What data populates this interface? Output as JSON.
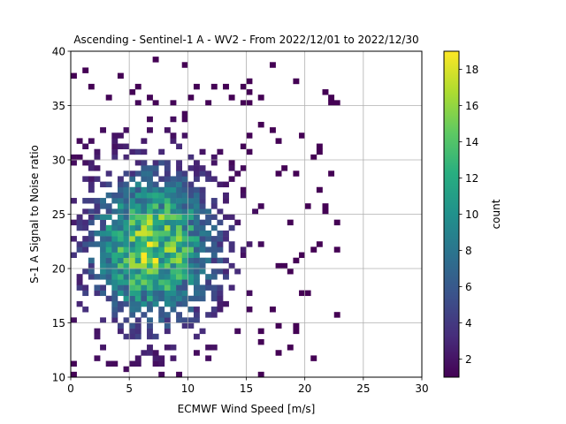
{
  "chart_data": {
    "type": "heatmap",
    "title": "Ascending - Sentinel-1 A - WV2 - From 2022/12/01 to 2022/12/30",
    "xlabel": "ECMWF Wind Speed [m/s]",
    "ylabel": "S-1 A Signal to Noise ratio",
    "xlim": [
      0,
      30
    ],
    "ylim": [
      10,
      40
    ],
    "x_ticks": [
      "0",
      "5",
      "10",
      "15",
      "20",
      "25",
      "30"
    ],
    "y_ticks": [
      "10",
      "15",
      "20",
      "25",
      "30",
      "35",
      "40"
    ],
    "grid": true,
    "colorbar": {
      "label": "count",
      "range": [
        1,
        19
      ],
      "ticks": [
        "2",
        "4",
        "6",
        "8",
        "10",
        "12",
        "14",
        "16",
        "18"
      ],
      "colormap": "viridis"
    },
    "distribution": {
      "peak_x": 7.0,
      "peak_y": 22.0,
      "peak_count": 19
    }
  }
}
